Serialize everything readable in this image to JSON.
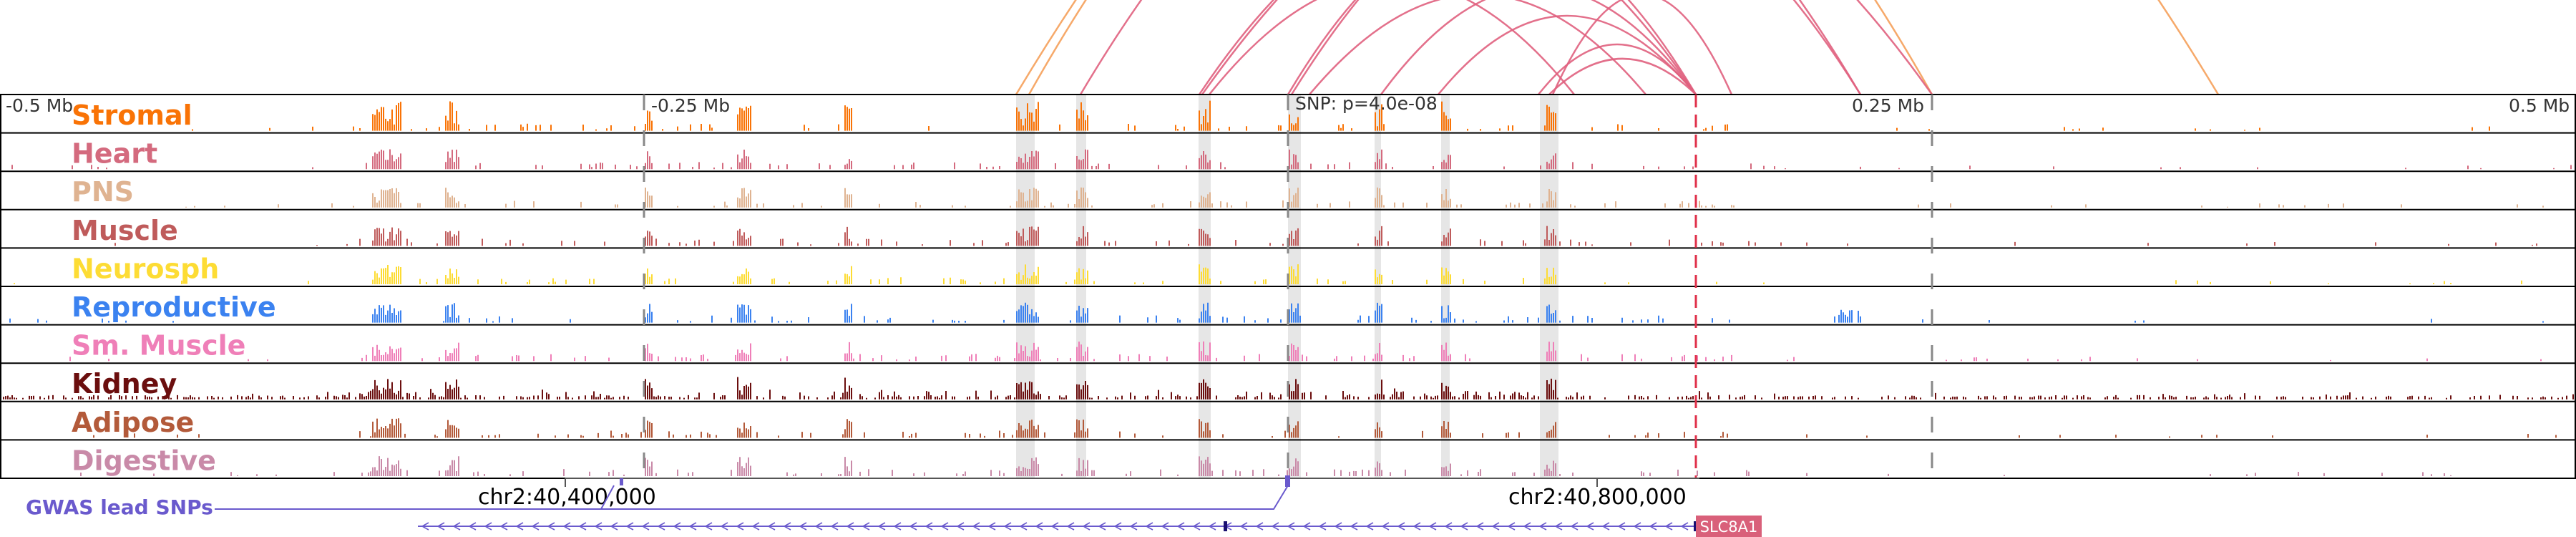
{
  "axis": {
    "labels": [
      "-0.5 Mb",
      "-0.25 Mb",
      "0.25 Mb",
      "0.5 Mb"
    ],
    "snp_label": "SNP: p=4.0e-08"
  },
  "tracks": [
    {
      "name": "Stromal",
      "color": "#f97306"
    },
    {
      "name": "Heart",
      "color": "#d46a7e"
    },
    {
      "name": "PNS",
      "color": "#dfb391"
    },
    {
      "name": "Muscle",
      "color": "#bf5b5b"
    },
    {
      "name": "Neurosph",
      "color": "#fddc34"
    },
    {
      "name": "Reproductive",
      "color": "#3b82f0"
    },
    {
      "name": "Sm. Muscle",
      "color": "#ef7fb8"
    },
    {
      "name": "Kidney",
      "color": "#6b0e0e"
    },
    {
      "name": "Adipose",
      "color": "#b35a3a"
    },
    {
      "name": "Digestive",
      "color": "#c98aa8"
    }
  ],
  "coordinates": [
    "chr2:40,400,000",
    "chr2:40,800,000"
  ],
  "gwas": {
    "label": "GWAS lead SNPs",
    "color": "#6a5acd"
  },
  "gene": {
    "name": "SLC8A1",
    "color": "#d9607a"
  },
  "colors": {
    "arc": "#e0607e",
    "arc_alt": "#f5a05a",
    "highlight": "#dddddd",
    "snp_line": "#e0304a"
  }
}
